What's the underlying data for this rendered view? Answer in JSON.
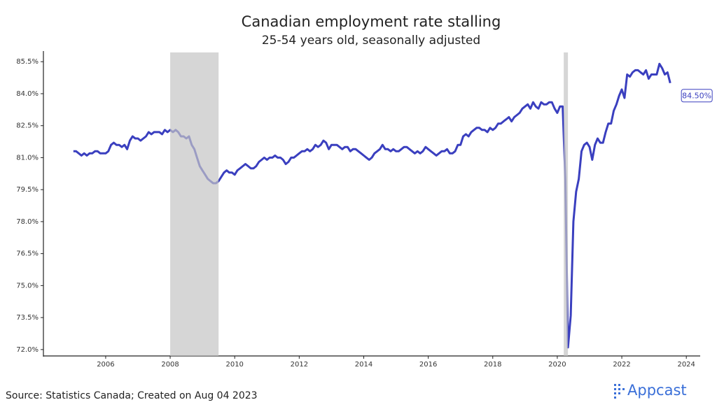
{
  "chart_data": {
    "type": "line",
    "title": "Canadian employment rate stalling",
    "subtitle": "25-54 years old, seasonally adjusted",
    "source": "Source: Statistics Canada; Created on Aug 04 2023",
    "logo": "Appcast",
    "annotation": "84.50%",
    "xlim": [
      2004.07,
      2024.43
    ],
    "xticks": [
      2006,
      2008,
      2010,
      2012,
      2014,
      2016,
      2018,
      2020,
      2022,
      2024
    ],
    "ylim": [
      71.7,
      86.0
    ],
    "yticks": [
      {
        "value": 72.0,
        "label": "72.0%"
      },
      {
        "value": 73.5,
        "label": "73.5%"
      },
      {
        "value": 75.0,
        "label": "75.0%"
      },
      {
        "value": 76.5,
        "label": "76.5%"
      },
      {
        "value": 78.0,
        "label": "78.0%"
      },
      {
        "value": 79.5,
        "label": "79.5%"
      },
      {
        "value": 81.0,
        "label": "81.0%"
      },
      {
        "value": 82.5,
        "label": "82.5%"
      },
      {
        "value": 84.0,
        "label": "84.0%"
      },
      {
        "value": 85.5,
        "label": "85.5%"
      }
    ],
    "grid": false,
    "shade_color": "#c4c4c4",
    "shaded_periods": [
      [
        2008.0,
        2009.5
      ],
      [
        2020.2,
        2020.33
      ]
    ],
    "x": [
      2005,
      2005.083,
      2005.167,
      2005.25,
      2005.333,
      2005.417,
      2005.5,
      2005.583,
      2005.667,
      2005.75,
      2005.833,
      2005.917,
      2006,
      2006.083,
      2006.167,
      2006.25,
      2006.333,
      2006.417,
      2006.5,
      2006.583,
      2006.667,
      2006.75,
      2006.833,
      2006.917,
      2007,
      2007.083,
      2007.167,
      2007.25,
      2007.333,
      2007.417,
      2007.5,
      2007.583,
      2007.667,
      2007.75,
      2007.833,
      2007.917,
      2008,
      2008.083,
      2008.167,
      2008.25,
      2008.333,
      2008.417,
      2008.5,
      2008.583,
      2008.667,
      2008.75,
      2008.833,
      2008.917,
      2009,
      2009.083,
      2009.167,
      2009.25,
      2009.333,
      2009.417,
      2009.5,
      2009.583,
      2009.667,
      2009.75,
      2009.833,
      2009.917,
      2010,
      2010.083,
      2010.167,
      2010.25,
      2010.333,
      2010.417,
      2010.5,
      2010.583,
      2010.667,
      2010.75,
      2010.833,
      2010.917,
      2011,
      2011.083,
      2011.167,
      2011.25,
      2011.333,
      2011.417,
      2011.5,
      2011.583,
      2011.667,
      2011.75,
      2011.833,
      2011.917,
      2012,
      2012.083,
      2012.167,
      2012.25,
      2012.333,
      2012.417,
      2012.5,
      2012.583,
      2012.667,
      2012.75,
      2012.833,
      2012.917,
      2013,
      2013.083,
      2013.167,
      2013.25,
      2013.333,
      2013.417,
      2013.5,
      2013.583,
      2013.667,
      2013.75,
      2013.833,
      2013.917,
      2014,
      2014.083,
      2014.167,
      2014.25,
      2014.333,
      2014.417,
      2014.5,
      2014.583,
      2014.667,
      2014.75,
      2014.833,
      2014.917,
      2015,
      2015.083,
      2015.167,
      2015.25,
      2015.333,
      2015.417,
      2015.5,
      2015.583,
      2015.667,
      2015.75,
      2015.833,
      2015.917,
      2016,
      2016.083,
      2016.167,
      2016.25,
      2016.333,
      2016.417,
      2016.5,
      2016.583,
      2016.667,
      2016.75,
      2016.833,
      2016.917,
      2017,
      2017.083,
      2017.167,
      2017.25,
      2017.333,
      2017.417,
      2017.5,
      2017.583,
      2017.667,
      2017.75,
      2017.833,
      2017.917,
      2018,
      2018.083,
      2018.167,
      2018.25,
      2018.333,
      2018.417,
      2018.5,
      2018.583,
      2018.667,
      2018.75,
      2018.833,
      2018.917,
      2019,
      2019.083,
      2019.167,
      2019.25,
      2019.333,
      2019.417,
      2019.5,
      2019.583,
      2019.667,
      2019.75,
      2019.833,
      2019.917,
      2020,
      2020.083,
      2020.167,
      2020.25,
      2020.333,
      2020.417,
      2020.5,
      2020.583,
      2020.667,
      2020.75,
      2020.833,
      2020.917,
      2021,
      2021.083,
      2021.167,
      2021.25,
      2021.333,
      2021.417,
      2021.5,
      2021.583,
      2021.667,
      2021.75,
      2021.833,
      2021.917,
      2022,
      2022.083,
      2022.167,
      2022.25,
      2022.333,
      2022.417,
      2022.5,
      2022.583,
      2022.667,
      2022.75,
      2022.833,
      2022.917,
      2023,
      2023.083,
      2023.167,
      2023.25,
      2023.333,
      2023.417,
      2023.5
    ],
    "series": [
      {
        "name": "Employment rate",
        "color": "#3a3fbf",
        "values": [
          81.3,
          81.3,
          81.2,
          81.1,
          81.2,
          81.1,
          81.2,
          81.2,
          81.3,
          81.3,
          81.2,
          81.2,
          81.2,
          81.3,
          81.6,
          81.7,
          81.6,
          81.6,
          81.5,
          81.6,
          81.4,
          81.8,
          82.0,
          81.9,
          81.9,
          81.8,
          81.9,
          82.0,
          82.2,
          82.1,
          82.2,
          82.2,
          82.2,
          82.1,
          82.3,
          82.2,
          82.3,
          82.2,
          82.3,
          82.2,
          82.0,
          82.0,
          81.9,
          82.0,
          81.6,
          81.4,
          81.0,
          80.6,
          80.4,
          80.2,
          80.0,
          79.9,
          79.8,
          79.8,
          79.9,
          80.1,
          80.3,
          80.4,
          80.3,
          80.3,
          80.2,
          80.4,
          80.5,
          80.6,
          80.7,
          80.6,
          80.5,
          80.5,
          80.6,
          80.8,
          80.9,
          81.0,
          80.9,
          81.0,
          81.0,
          81.1,
          81.0,
          81.0,
          80.9,
          80.7,
          80.8,
          81.0,
          81.0,
          81.1,
          81.2,
          81.3,
          81.3,
          81.4,
          81.3,
          81.4,
          81.6,
          81.5,
          81.6,
          81.8,
          81.7,
          81.4,
          81.6,
          81.6,
          81.6,
          81.5,
          81.4,
          81.5,
          81.5,
          81.3,
          81.4,
          81.4,
          81.3,
          81.2,
          81.1,
          81.0,
          80.9,
          81.0,
          81.2,
          81.3,
          81.4,
          81.6,
          81.4,
          81.4,
          81.3,
          81.4,
          81.3,
          81.3,
          81.4,
          81.5,
          81.5,
          81.4,
          81.3,
          81.2,
          81.3,
          81.2,
          81.3,
          81.5,
          81.4,
          81.3,
          81.2,
          81.1,
          81.2,
          81.3,
          81.3,
          81.4,
          81.2,
          81.2,
          81.3,
          81.6,
          81.6,
          82.0,
          82.1,
          82.0,
          82.2,
          82.3,
          82.4,
          82.4,
          82.3,
          82.3,
          82.2,
          82.4,
          82.3,
          82.4,
          82.6,
          82.6,
          82.7,
          82.8,
          82.9,
          82.7,
          82.9,
          83.0,
          83.1,
          83.3,
          83.4,
          83.5,
          83.3,
          83.6,
          83.4,
          83.3,
          83.6,
          83.5,
          83.5,
          83.6,
          83.6,
          83.3,
          83.1,
          83.4,
          83.4,
          80.0,
          72.1,
          73.6,
          78.0,
          79.4,
          80.0,
          81.3,
          81.6,
          81.7,
          81.5,
          80.9,
          81.6,
          81.9,
          81.7,
          81.7,
          82.2,
          82.6,
          82.6,
          83.2,
          83.5,
          83.9,
          84.2,
          83.8,
          84.9,
          84.8,
          85.0,
          85.1,
          85.1,
          85.0,
          84.9,
          85.1,
          84.7,
          84.9,
          84.9,
          84.9,
          85.4,
          85.2,
          84.9,
          85.0,
          84.5
        ]
      }
    ]
  }
}
